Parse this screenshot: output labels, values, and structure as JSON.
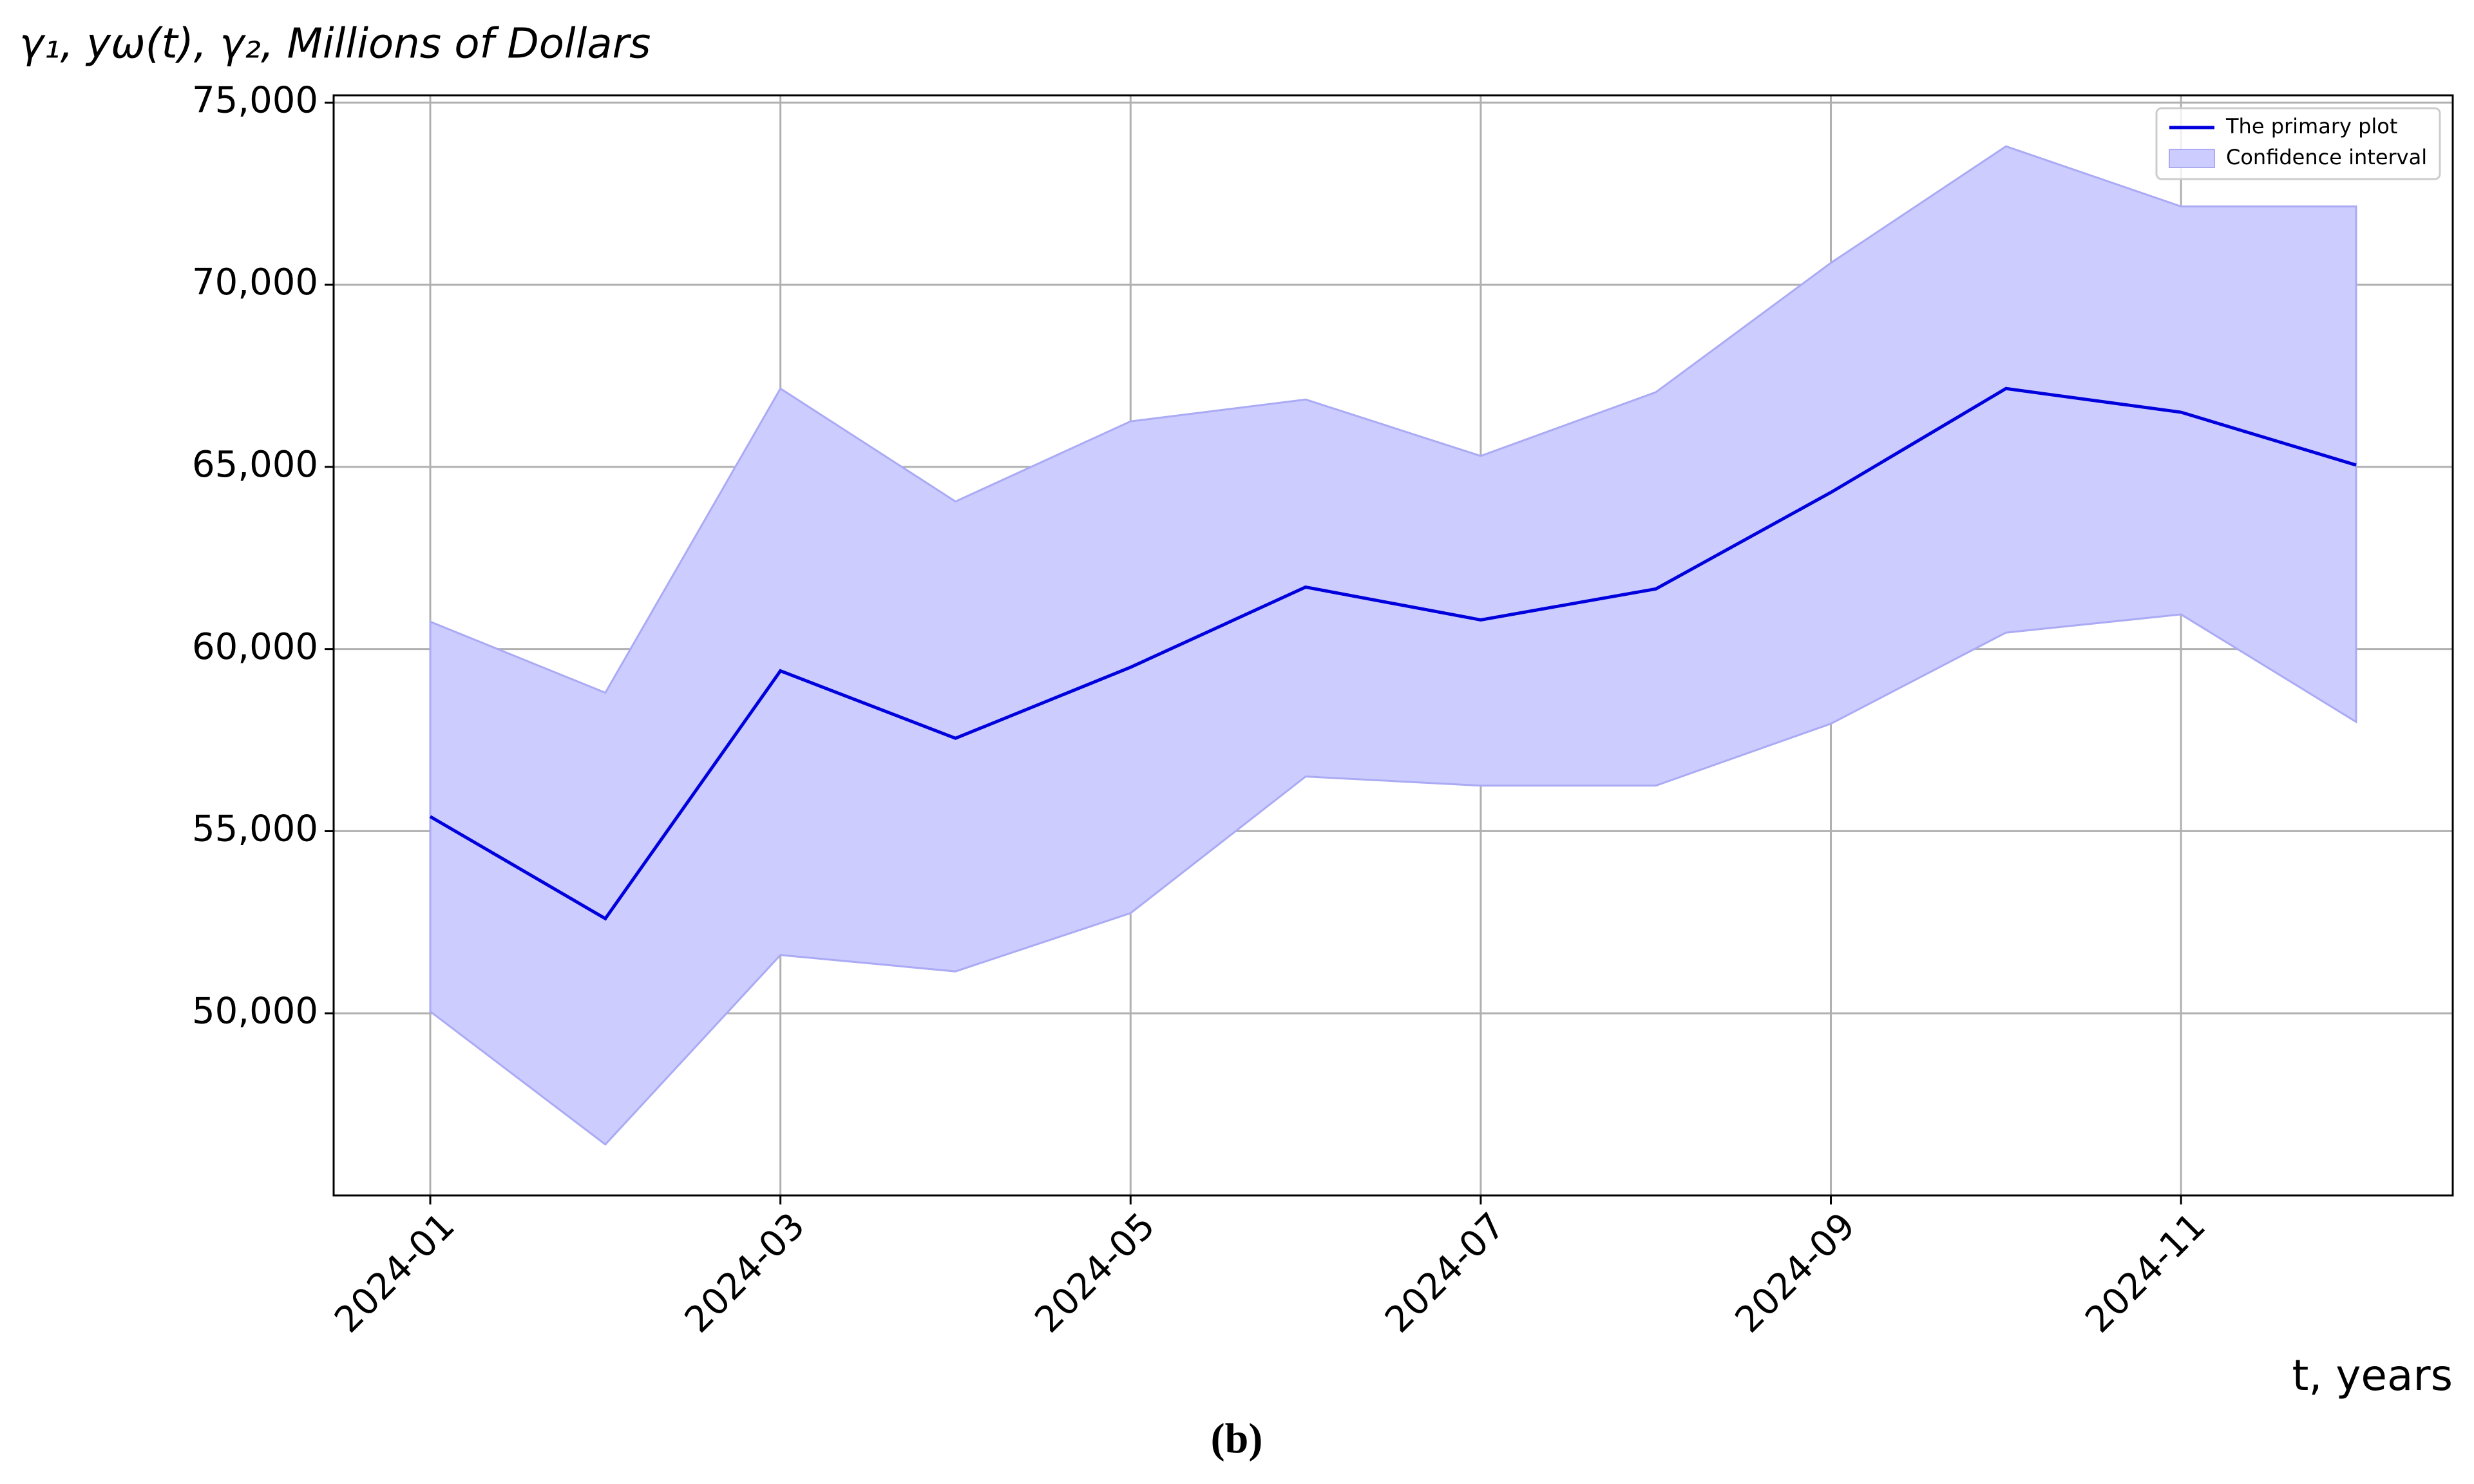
{
  "chart_data": {
    "type": "line",
    "y_label": "γ₁, yω(t), γ₂, Millions of Dollars",
    "x_label": "t, years",
    "caption": "(b)",
    "x": [
      "2024-01",
      "2024-02",
      "2024-03",
      "2024-04",
      "2024-05",
      "2024-06",
      "2024-07",
      "2024-08",
      "2024-09",
      "2024-10",
      "2024-11",
      "2024-12"
    ],
    "xticks": [
      "2024-01",
      "2024-03",
      "2024-05",
      "2024-07",
      "2024-09",
      "2024-11"
    ],
    "series": [
      {
        "name": "The primary plot",
        "color": "#0000dd",
        "values": [
          55400,
          52600,
          59400,
          57550,
          59500,
          61700,
          60800,
          61650,
          64300,
          67150,
          66500,
          65050
        ]
      }
    ],
    "band": {
      "name": "Confidence interval",
      "color": "#ccccff",
      "upper": [
        60750,
        58800,
        67150,
        64050,
        66250,
        66850,
        65300,
        67050,
        70600,
        73800,
        72150,
        72150
      ],
      "lower": [
        50050,
        46400,
        51600,
        51150,
        52750,
        56500,
        56250,
        56250,
        57950,
        60450,
        60950,
        58000
      ]
    },
    "ylim": [
      45000,
      75200
    ],
    "yticks": [
      {
        "value": 50000,
        "label": "50,000"
      },
      {
        "value": 55000,
        "label": "55,000"
      },
      {
        "value": 60000,
        "label": "60,000"
      },
      {
        "value": 65000,
        "label": "65,000"
      },
      {
        "value": 70000,
        "label": "70,000"
      },
      {
        "value": 75000,
        "label": "75,000"
      }
    ],
    "grid": true,
    "legend": "upper right"
  }
}
